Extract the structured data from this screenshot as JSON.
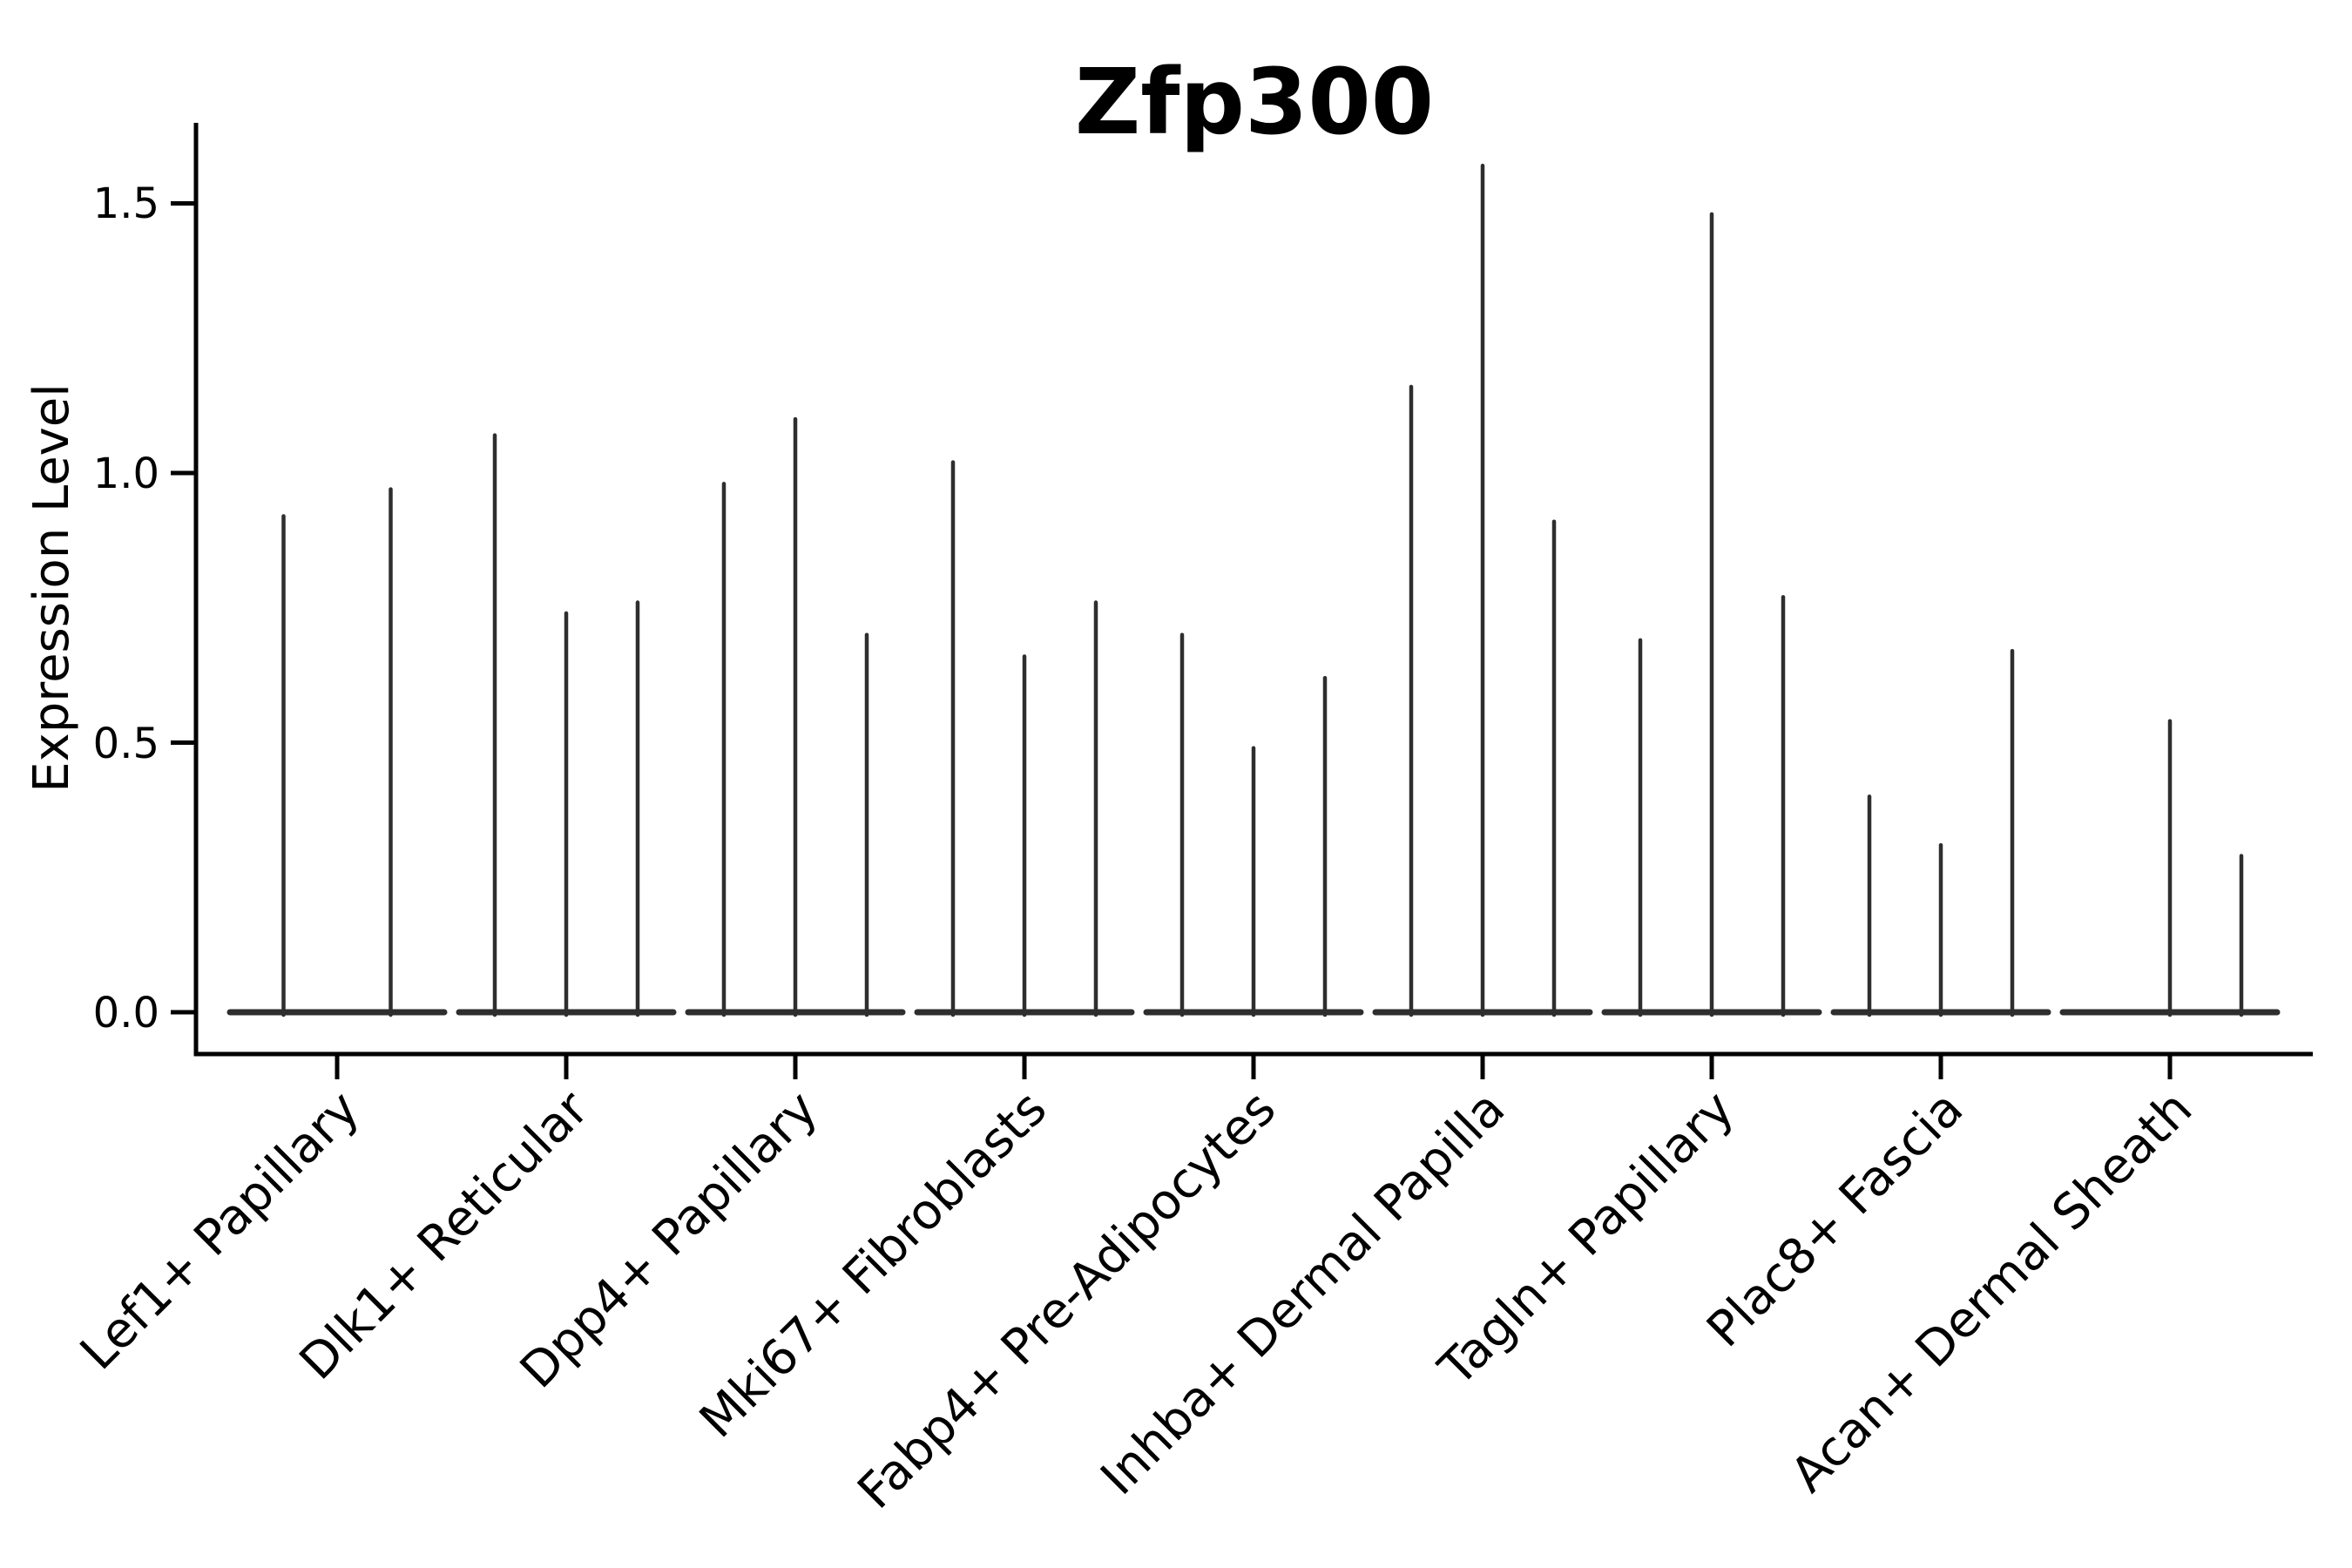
{
  "chart_data": {
    "type": "violin",
    "title": "Zfp300",
    "ylabel": "Expression Level",
    "xlabel": "",
    "ylim": [
      0,
      1.65
    ],
    "yticks": [
      0.0,
      0.5,
      1.0,
      1.5
    ],
    "ytick_labels": [
      "0.0",
      "0.5",
      "1.0",
      "1.5"
    ],
    "grid": "off",
    "legend": "none",
    "x_tick_rotation": 45,
    "description": "Collapsed violin plot of gene expression; each category shows thin vertical density spikes rising from a flat base at 0. Spike heights are the maximum expression level per violin.",
    "categories": [
      "Lef1+ Papillary",
      "Dlk1+ Reticular",
      "Dpp4+ Papillary",
      "Mki67+ Fibroblasts",
      "Fabp4+ Pre-Adipocytes",
      "Inhba+ Dermal Papilla",
      "Tagln+ Papillary",
      "Plac8+ Fascia",
      "Acan+ Dermal Sheath"
    ],
    "groups": [
      {
        "category": "Lef1+ Papillary",
        "violin_peaks": [
          0.92,
          0.97
        ]
      },
      {
        "category": "Dlk1+ Reticular",
        "violin_peaks": [
          1.07,
          0.74,
          0.76
        ]
      },
      {
        "category": "Dpp4+ Papillary",
        "violin_peaks": [
          0.98,
          1.1,
          0.7
        ]
      },
      {
        "category": "Mki67+ Fibroblasts",
        "violin_peaks": [
          1.02,
          0.66,
          0.76
        ]
      },
      {
        "category": "Fabp4+ Pre-Adipocytes",
        "violin_peaks": [
          0.7,
          0.49,
          0.62
        ]
      },
      {
        "category": "Inhba+ Dermal Papilla",
        "violin_peaks": [
          1.16,
          1.57,
          0.91
        ]
      },
      {
        "category": "Tagln+ Papillary",
        "violin_peaks": [
          0.69,
          1.48,
          0.77
        ]
      },
      {
        "category": "Plac8+ Fascia",
        "violin_peaks": [
          0.4,
          0.31,
          0.67
        ]
      },
      {
        "category": "Acan+ Dermal Sheath",
        "violin_peaks": [
          0.0,
          0.54,
          0.29
        ]
      }
    ],
    "style": {
      "violin_line_color": "#2e2e2e",
      "axis_color": "#000000",
      "background": "#ffffff"
    }
  }
}
